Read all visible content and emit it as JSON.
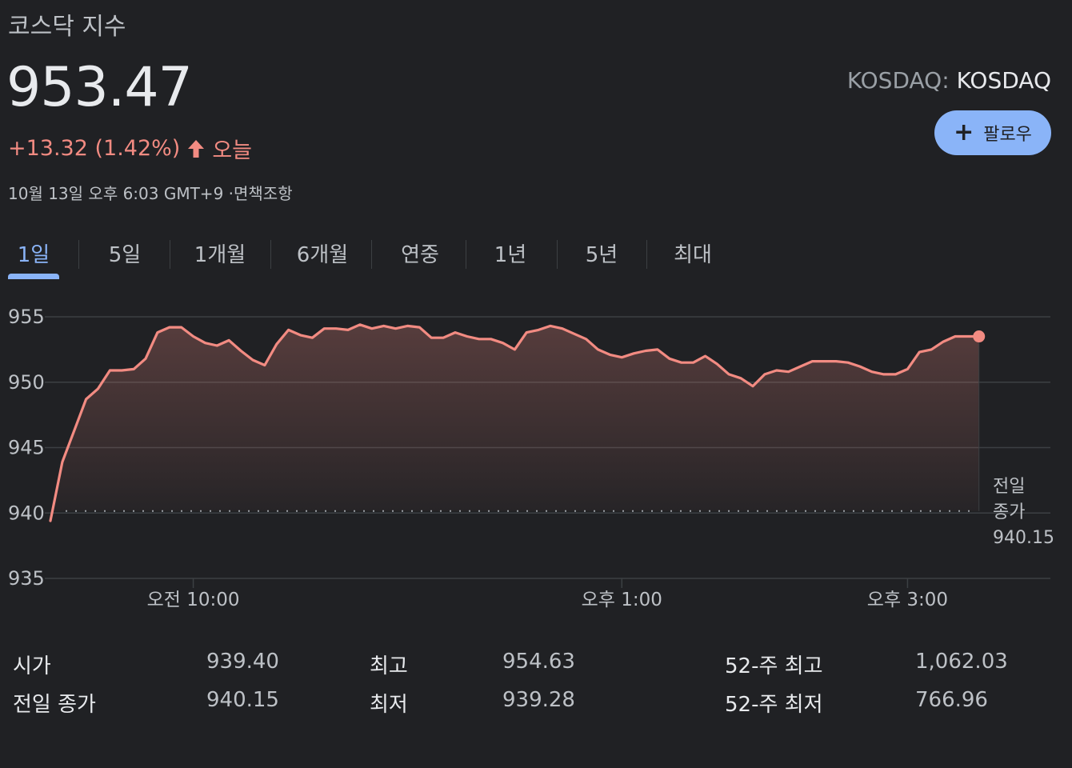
{
  "header": {
    "title": "코스닥 지수",
    "price": "953.47",
    "change": "+13.32 (1.42%)",
    "change_period": "오늘",
    "timestamp": "10월 13일 오후 6:03 GMT+9 ·면책조항",
    "exchange_prefix": "KOSDAQ:",
    "exchange_symbol": "KOSDAQ",
    "follow_label": "팔로우",
    "up_color": "#f28b82",
    "accent_color": "#8ab4f8"
  },
  "tabs": [
    "1일",
    "5일",
    "1개월",
    "6개월",
    "연중",
    "1년",
    "5년",
    "최대"
  ],
  "active_tab": "1일",
  "chart_data": {
    "type": "area",
    "title": "",
    "xlabel": "",
    "ylabel": "",
    "ylim": [
      935,
      955
    ],
    "yticks": [
      "955",
      "950",
      "945",
      "940",
      "935"
    ],
    "xticks": [
      {
        "label": "오전 10:00",
        "time": "10:00"
      },
      {
        "label": "오후 1:00",
        "time": "13:00"
      },
      {
        "label": "오후 3:00",
        "time": "15:00"
      }
    ],
    "time_range": [
      "09:00",
      "16:00"
    ],
    "grid": true,
    "previous_close": 940.15,
    "previous_close_label": [
      "전일",
      "종가",
      "940.15"
    ],
    "line_color": "#f28b82",
    "series": [
      {
        "x": [
          "09:00",
          "09:05",
          "09:10",
          "09:15",
          "09:20",
          "09:25",
          "09:30",
          "09:35",
          "09:40",
          "09:45",
          "09:50",
          "09:55",
          "10:00",
          "10:05",
          "10:10",
          "10:15",
          "10:20",
          "10:25",
          "10:30",
          "10:35",
          "10:40",
          "10:45",
          "10:50",
          "10:55",
          "11:00",
          "11:05",
          "11:10",
          "11:15",
          "11:20",
          "11:25",
          "11:30",
          "11:35",
          "11:40",
          "11:45",
          "11:50",
          "11:55",
          "12:00",
          "12:05",
          "12:10",
          "12:15",
          "12:20",
          "12:25",
          "12:30",
          "12:35",
          "12:40",
          "12:45",
          "12:50",
          "12:55",
          "13:00",
          "13:05",
          "13:10",
          "13:15",
          "13:20",
          "13:25",
          "13:30",
          "13:35",
          "13:40",
          "13:45",
          "13:50",
          "13:55",
          "14:00",
          "14:05",
          "14:10",
          "14:15",
          "14:20",
          "14:25",
          "14:30",
          "14:35",
          "14:40",
          "14:45",
          "14:50",
          "14:55",
          "15:00",
          "15:05",
          "15:10",
          "15:15",
          "15:20",
          "15:25",
          "15:30"
        ],
        "values": [
          939.4,
          943.9,
          946.3,
          948.7,
          949.5,
          950.9,
          950.9,
          951.0,
          951.8,
          953.8,
          954.2,
          954.2,
          953.5,
          953.0,
          952.8,
          953.2,
          952.4,
          951.7,
          951.3,
          952.9,
          954.0,
          953.6,
          953.4,
          954.1,
          954.1,
          954.0,
          954.4,
          954.1,
          954.3,
          954.1,
          954.3,
          954.2,
          953.4,
          953.4,
          953.8,
          953.5,
          953.3,
          953.3,
          953.0,
          952.5,
          953.8,
          954.0,
          954.3,
          954.1,
          953.7,
          953.3,
          952.5,
          952.1,
          951.9,
          952.2,
          952.4,
          952.5,
          951.8,
          951.5,
          951.5,
          952.0,
          951.4,
          950.6,
          950.3,
          949.7,
          950.6,
          950.9,
          950.8,
          951.2,
          951.6,
          951.6,
          951.6,
          951.5,
          951.2,
          950.8,
          950.6,
          950.6,
          951.0,
          952.3,
          952.5,
          953.1,
          953.5,
          953.5,
          953.5
        ]
      }
    ]
  },
  "stats": [
    {
      "label": "시가",
      "value": "939.40"
    },
    {
      "label": "전일 종가",
      "value": "940.15"
    },
    {
      "label": "최고",
      "value": "954.63"
    },
    {
      "label": "최저",
      "value": "939.28"
    },
    {
      "label": "52-주 최고",
      "value": "1,062.03"
    },
    {
      "label": "52-주 최저",
      "value": "766.96"
    }
  ]
}
